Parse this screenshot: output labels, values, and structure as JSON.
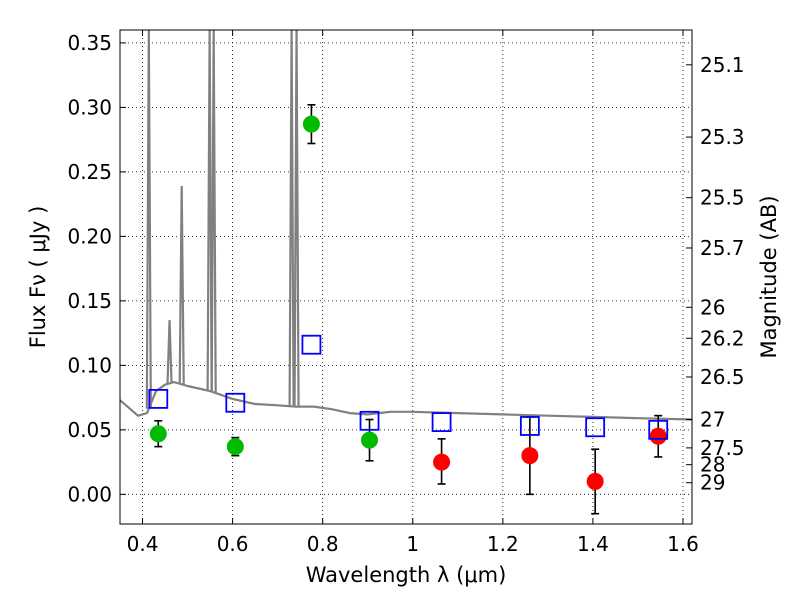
{
  "chart_data": {
    "type": "scatter",
    "xlabel": "Wavelength  λ (μm)",
    "ylabel": "Flux  Fν  ( μJy )",
    "y2label": "Magnitude (AB)",
    "xlim": [
      0.35,
      1.62
    ],
    "ylim": [
      -0.023,
      0.36
    ],
    "xticks": [
      0.4,
      0.6,
      0.8,
      1.0,
      1.2,
      1.4,
      1.6
    ],
    "xtick_labels": [
      "0.4",
      "0.6",
      "0.8",
      "1",
      "1.2",
      "1.4",
      "1.6"
    ],
    "yticks": [
      0.0,
      0.05,
      0.1,
      0.15,
      0.2,
      0.25,
      0.3,
      0.35
    ],
    "ytick_labels": [
      "0.00",
      "0.05",
      "0.10",
      "0.15",
      "0.20",
      "0.25",
      "0.30",
      "0.35"
    ],
    "y2ticks": [
      {
        "label": "25.1",
        "flux": 0.333
      },
      {
        "label": "25.3",
        "flux": 0.277
      },
      {
        "label": "25.5",
        "flux": 0.23
      },
      {
        "label": "25.7",
        "flux": 0.191
      },
      {
        "label": "26",
        "flux": 0.145
      },
      {
        "label": "26.2",
        "flux": 0.121
      },
      {
        "label": "26.5",
        "flux": 0.091
      },
      {
        "label": "27",
        "flux": 0.058
      },
      {
        "label": "27.5",
        "flux": 0.036
      },
      {
        "label": "28",
        "flux": 0.023
      },
      {
        "label": "29",
        "flux": 0.009
      }
    ],
    "grid": true,
    "colors": {
      "model": "#808080",
      "green": "#00bb00",
      "red": "#ff0000",
      "blue": "#0000ff"
    },
    "model_spectrum": {
      "continuum": [
        [
          0.35,
          0.073
        ],
        [
          0.37,
          0.067
        ],
        [
          0.39,
          0.061
        ],
        [
          0.41,
          0.063
        ],
        [
          0.43,
          0.08
        ],
        [
          0.45,
          0.085
        ],
        [
          0.47,
          0.087
        ],
        [
          0.5,
          0.084
        ],
        [
          0.55,
          0.08
        ],
        [
          0.6,
          0.074
        ],
        [
          0.65,
          0.07
        ],
        [
          0.7,
          0.069
        ],
        [
          0.74,
          0.068
        ],
        [
          0.78,
          0.068
        ],
        [
          0.82,
          0.066
        ],
        [
          0.86,
          0.063
        ],
        [
          0.9,
          0.062
        ],
        [
          0.95,
          0.064
        ],
        [
          1.0,
          0.064
        ],
        [
          1.1,
          0.063
        ],
        [
          1.2,
          0.062
        ],
        [
          1.3,
          0.061
        ],
        [
          1.4,
          0.06
        ],
        [
          1.5,
          0.059
        ],
        [
          1.62,
          0.058
        ]
      ],
      "lines": [
        {
          "x": 0.414,
          "peak": 0.36
        },
        {
          "x": 0.46,
          "peak": 0.135
        },
        {
          "x": 0.487,
          "peak": 0.239
        },
        {
          "x": 0.549,
          "peak": 0.36
        },
        {
          "x": 0.558,
          "peak": 0.36
        },
        {
          "x": 0.731,
          "peak": 0.36
        },
        {
          "x": 0.742,
          "peak": 0.36
        }
      ]
    },
    "series": [
      {
        "marker": "circle",
        "color": "green",
        "points": [
          {
            "x": 0.435,
            "y": 0.047,
            "err_lo": 0.037,
            "err_hi": 0.057
          },
          {
            "x": 0.606,
            "y": 0.037,
            "err_lo": 0.03,
            "err_hi": 0.044
          },
          {
            "x": 0.775,
            "y": 0.287,
            "err_lo": 0.272,
            "err_hi": 0.302
          },
          {
            "x": 0.904,
            "y": 0.042,
            "err_lo": 0.026,
            "err_hi": 0.058
          }
        ]
      },
      {
        "marker": "circle",
        "color": "red",
        "points": [
          {
            "x": 1.064,
            "y": 0.025,
            "err_lo": 0.008,
            "err_hi": 0.043
          },
          {
            "x": 1.26,
            "y": 0.03,
            "err_lo": 0.0,
            "err_hi": 0.06
          },
          {
            "x": 1.405,
            "y": 0.01,
            "err_lo": -0.015,
            "err_hi": 0.035
          },
          {
            "x": 1.545,
            "y": 0.045,
            "err_lo": 0.029,
            "err_hi": 0.061
          }
        ]
      },
      {
        "marker": "open-square",
        "color": "blue",
        "points": [
          {
            "x": 0.435,
            "y": 0.074
          },
          {
            "x": 0.606,
            "y": 0.071
          },
          {
            "x": 0.775,
            "y": 0.116
          },
          {
            "x": 0.904,
            "y": 0.057
          },
          {
            "x": 1.064,
            "y": 0.056
          },
          {
            "x": 1.26,
            "y": 0.053
          },
          {
            "x": 1.405,
            "y": 0.052
          },
          {
            "x": 1.545,
            "y": 0.05
          }
        ]
      }
    ]
  }
}
